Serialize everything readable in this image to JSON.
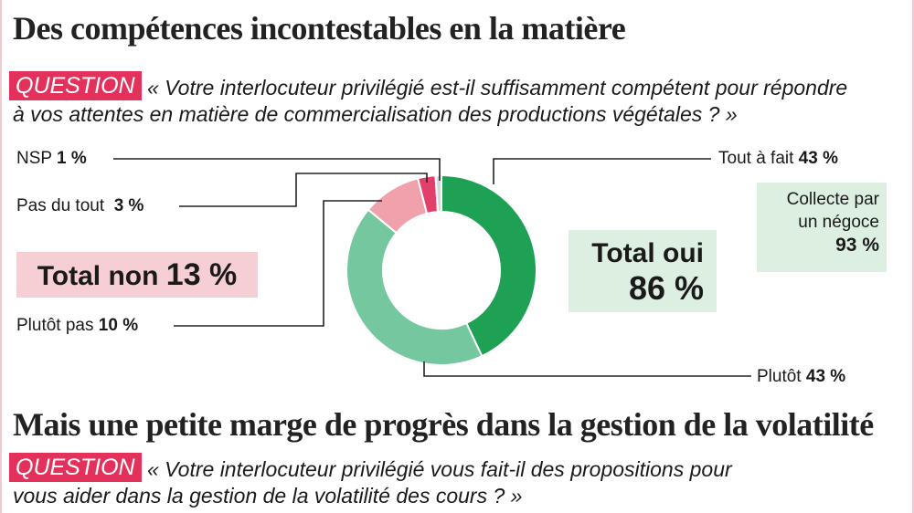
{
  "section1": {
    "title": "Des compétences incontestables en la matière",
    "question_tag": "QUESTION",
    "question_line1": "« Votre interlocuteur privilégié est-il suffisamment compétent pour répondre",
    "question_line2": "à vos attentes en matière de commercialisation des productions végétales ? »"
  },
  "section2": {
    "title": "Mais une petite marge de progrès dans la gestion de la volatilité",
    "question_tag": "QUESTION",
    "question_line1": "« Votre interlocuteur privilégié vous fait-il des propositions pour",
    "question_line2": "vous aider dans la gestion de la volatilité des cours ? »"
  },
  "labels": {
    "nsp_name": "NSP",
    "nsp_value": "1 %",
    "pasdutout_name": "Pas du tout",
    "pasdutout_value": "3 %",
    "plutotpas_name": "Plutôt pas",
    "plutotpas_value": "10 %",
    "toutafait_name": "Tout à fait",
    "toutafait_value": "43 %",
    "plutot_name": "Plutôt",
    "plutot_value": "43 %"
  },
  "totals": {
    "non_label": "Total non",
    "non_value": "13 %",
    "oui_label": "Total oui",
    "oui_value": "86 %",
    "collecte_line1": "Collecte par",
    "collecte_line2": "un négoce",
    "collecte_value": "93 %"
  },
  "colors": {
    "tout_a_fait": "#1fa155",
    "plutot": "#74c79f",
    "plutot_pas": "#f0a1ab",
    "pas_du_tout": "#e2406a",
    "nsp": "#d8d8d8",
    "accent": "#e3315b"
  },
  "chart_data": {
    "type": "pie",
    "donut": true,
    "categories": [
      "Tout à fait",
      "Plutôt",
      "Plutôt pas",
      "Pas du tout",
      "NSP"
    ],
    "values": [
      43,
      43,
      10,
      3,
      1
    ],
    "unit": "%",
    "totals": {
      "Total oui": 86,
      "Total non": 13,
      "Collecte par un négoce": 93
    }
  }
}
